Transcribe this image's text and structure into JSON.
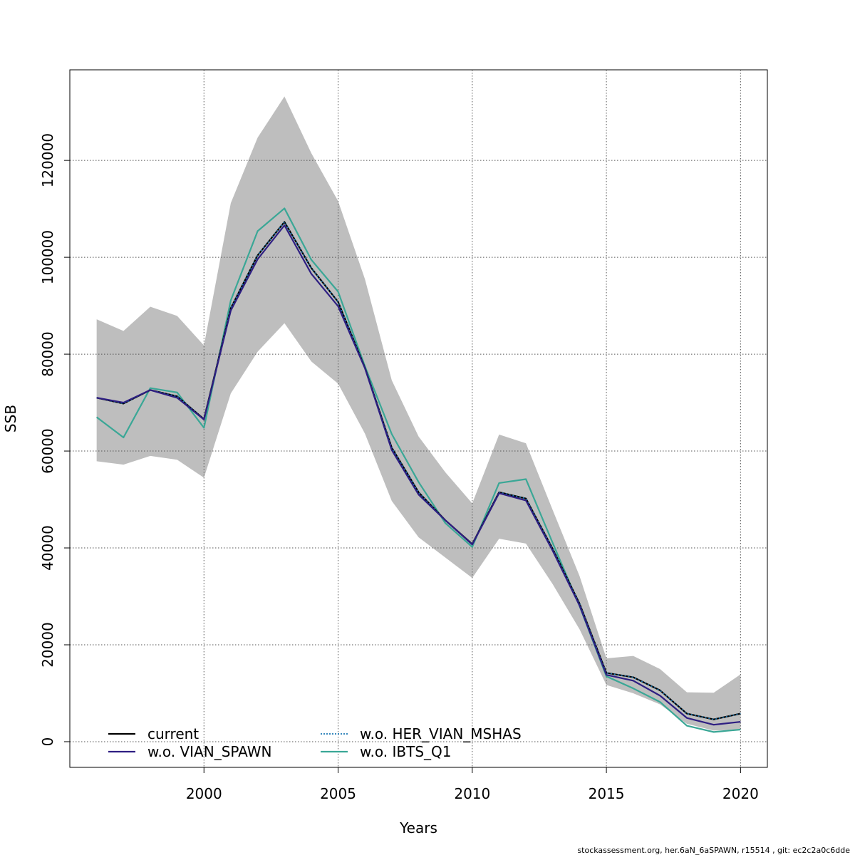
{
  "chart_data": {
    "type": "line",
    "title": "",
    "xlabel": "Years",
    "ylabel": "SSB",
    "xlim": [
      1995,
      2021
    ],
    "ylim": [
      -5300,
      138700
    ],
    "grid": true,
    "x_ticks": [
      2000,
      2005,
      2010,
      2015,
      2020
    ],
    "x_tick_labels": [
      "2000",
      "2005",
      "2010",
      "2015",
      "2020"
    ],
    "y_ticks": [
      0,
      20000,
      40000,
      60000,
      80000,
      100000,
      120000
    ],
    "y_tick_labels": [
      "0",
      "20000",
      "40000",
      "60000",
      "80000",
      "100000",
      "120000"
    ],
    "x": [
      1996,
      1997,
      1998,
      1999,
      2000,
      2001,
      2002,
      2003,
      2004,
      2005,
      2006,
      2007,
      2008,
      2009,
      2010,
      2011,
      2012,
      2013,
      2014,
      2015,
      2016,
      2017,
      2018,
      2019,
      2020
    ],
    "confidence_band": {
      "color": "#bebebe",
      "upper": [
        87200,
        84800,
        89800,
        87900,
        81800,
        111200,
        124700,
        133200,
        121500,
        111600,
        95500,
        74600,
        63000,
        55600,
        49200,
        63400,
        61600,
        47800,
        34200,
        17200,
        17700,
        15000,
        10200,
        10100,
        13900
      ],
      "lower": [
        57900,
        57200,
        59000,
        58200,
        54500,
        71900,
        80500,
        86400,
        78500,
        73900,
        63600,
        49700,
        42200,
        38000,
        33800,
        41900,
        40900,
        32500,
        23200,
        11700,
        10000,
        7700,
        3700,
        2300,
        2500
      ]
    },
    "series": [
      {
        "name": "current",
        "color": "#000000",
        "dash": "solid",
        "values": [
          71000,
          69800,
          72600,
          71300,
          66600,
          89500,
          100400,
          107300,
          97800,
          90800,
          77200,
          60700,
          51500,
          45700,
          40800,
          51500,
          50200,
          39800,
          28500,
          14200,
          13300,
          10600,
          5800,
          4600,
          5800
        ]
      },
      {
        "name": "w.o. VIAN_SPAWN",
        "color": "#2e1e82",
        "dash": "solid",
        "values": [
          71000,
          70000,
          72600,
          71000,
          66500,
          89000,
          99600,
          106600,
          96600,
          89900,
          77100,
          60200,
          51000,
          45700,
          40700,
          51300,
          49800,
          39400,
          28100,
          13800,
          12600,
          9500,
          4900,
          3500,
          4100
        ]
      },
      {
        "name": "w.o. HER_VIAN_MSHAS",
        "color": "#1b78b4",
        "dash": "dotted",
        "values": [
          71000,
          69800,
          72600,
          71300,
          66600,
          89500,
          100400,
          107300,
          97800,
          90800,
          77200,
          60700,
          51500,
          45700,
          40800,
          51500,
          50200,
          39800,
          28500,
          14200,
          13300,
          10600,
          5800,
          4600,
          5800
        ]
      },
      {
        "name": "w.o. IBTS_Q1",
        "color": "#3aa796",
        "dash": "solid",
        "values": [
          67000,
          62800,
          73000,
          72100,
          64800,
          91100,
          105400,
          110100,
          99500,
          92900,
          77500,
          63500,
          53600,
          45100,
          40200,
          53400,
          54200,
          41000,
          28000,
          13500,
          11000,
          8200,
          3300,
          2000,
          2500
        ]
      }
    ],
    "legend": {
      "placement": "bottom-left",
      "columns": 2,
      "entries": [
        "current",
        "w.o. VIAN_SPAWN",
        "w.o. HER_VIAN_MSHAS",
        "w.o. IBTS_Q1"
      ]
    }
  },
  "footer": "stockassessment.org, her.6aN_6aSPAWN, r15514 , git: ec2c2a0c6dde"
}
